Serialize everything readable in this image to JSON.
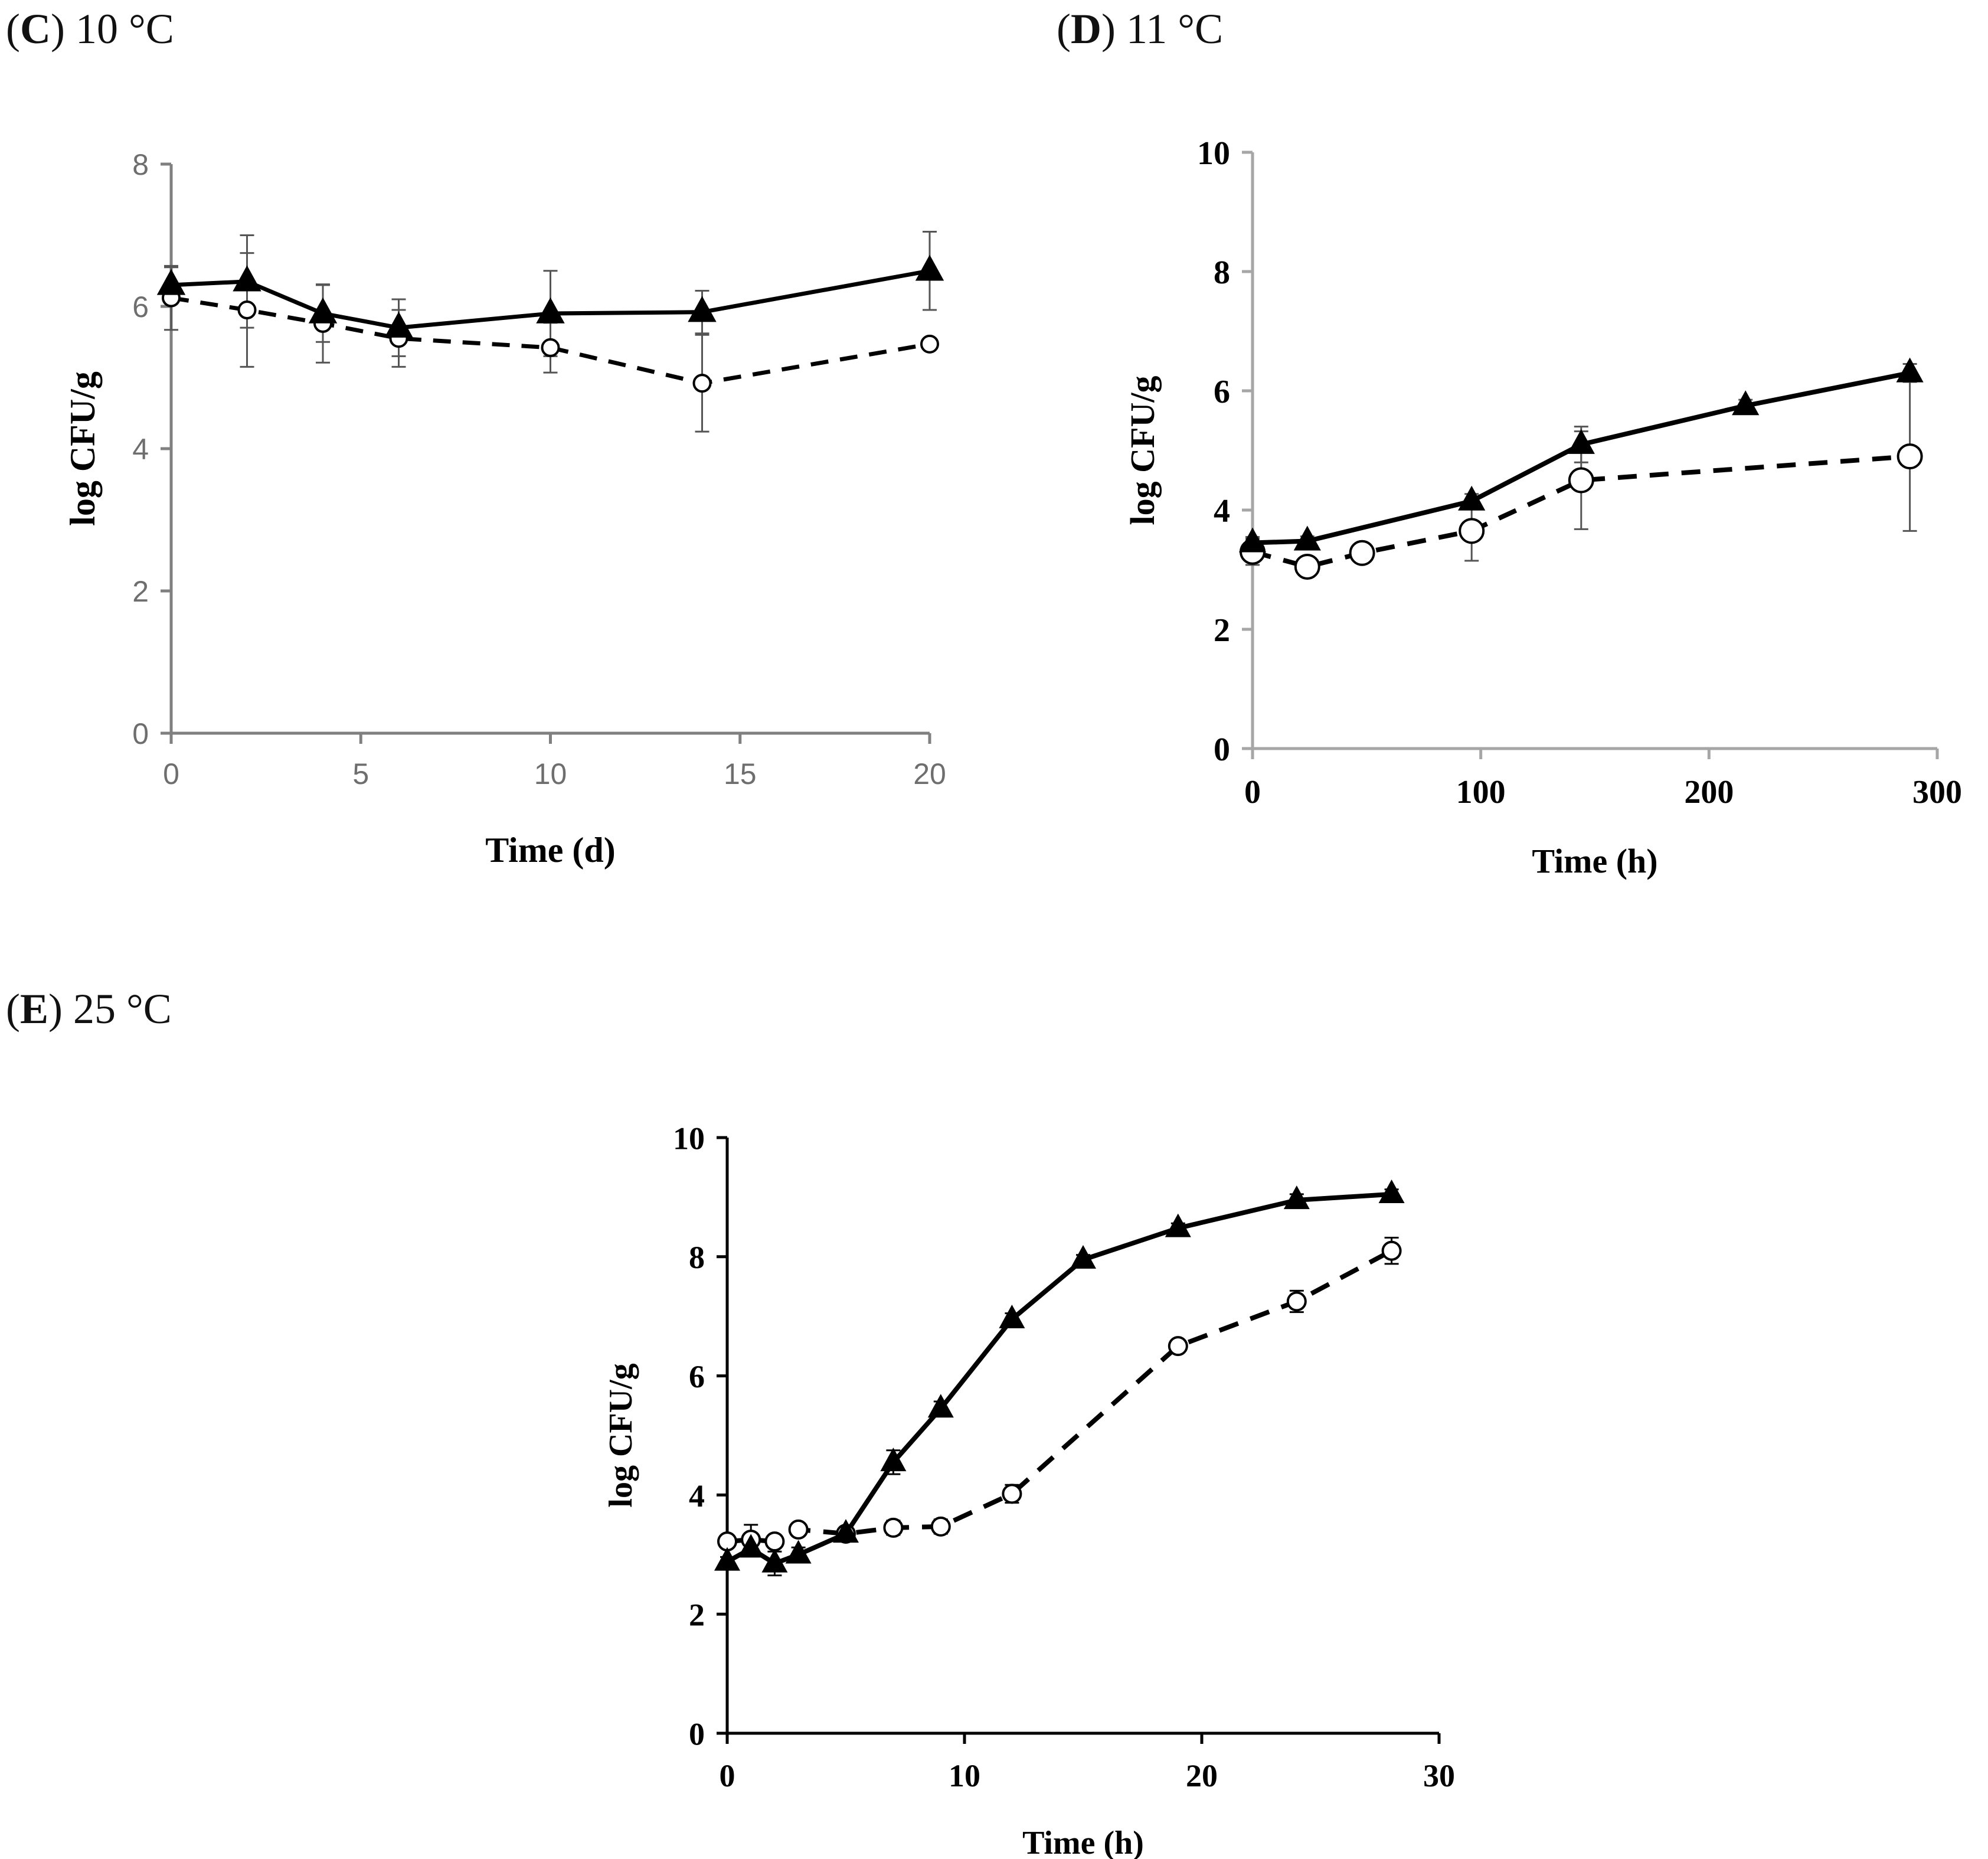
{
  "panels": {
    "C": {
      "letter": "C",
      "open": "(",
      "close": ")",
      "temp": "10 °C"
    },
    "D": {
      "letter": "D",
      "open": "(",
      "close": ")",
      "temp": "11 °C"
    },
    "E": {
      "letter": "E",
      "open": "(",
      "close": ")",
      "temp": "25 °C"
    }
  },
  "colors": {
    "ink": "#000000",
    "axisC": "#808080",
    "tickTextC": "#6e6e6e",
    "errorC": "#555555",
    "axisD": "#a6a6a6",
    "axisE": "#000000"
  },
  "chart_data": [
    {
      "id": "C",
      "type": "line",
      "title": "(C) 10 °C",
      "xlabel": "Time (d)",
      "ylabel": "log CFU/g",
      "xlim": [
        0,
        20
      ],
      "ylim": [
        0,
        8
      ],
      "xticks": [
        0,
        5,
        10,
        15,
        20
      ],
      "yticks": [
        0,
        2,
        4,
        6,
        8
      ],
      "grid": false,
      "series": [
        {
          "name": "triangle-solid",
          "marker": "triangle",
          "line": "solid",
          "x": [
            0,
            2,
            4,
            6,
            10,
            14,
            20
          ],
          "y": [
            6.3,
            6.35,
            5.9,
            5.7,
            5.9,
            5.92,
            6.5
          ],
          "err": [
            0.25,
            0.65,
            0.4,
            0.4,
            0.6,
            0.3,
            0.55
          ]
        },
        {
          "name": "circle-dashed",
          "marker": "circle",
          "line": "dashed",
          "x": [
            0,
            2,
            4,
            6,
            10,
            14,
            20
          ],
          "y": [
            6.12,
            5.95,
            5.76,
            5.55,
            5.42,
            4.92,
            5.47
          ],
          "err": [
            0.45,
            0.8,
            0.55,
            0.4,
            0.35,
            0.68,
            0.05
          ]
        }
      ]
    },
    {
      "id": "D",
      "type": "line",
      "title": "(D) 11 °C",
      "xlabel": "Time (h)",
      "ylabel": "log CFU/g",
      "xlim": [
        0,
        300
      ],
      "ylim": [
        0,
        10
      ],
      "xticks": [
        0,
        100,
        200,
        300
      ],
      "yticks": [
        0,
        2,
        4,
        6,
        8,
        10
      ],
      "grid": false,
      "series": [
        {
          "name": "triangle-solid",
          "marker": "triangle",
          "line": "solid",
          "x": [
            0,
            24,
            96,
            144,
            216,
            288
          ],
          "y": [
            3.45,
            3.48,
            4.15,
            5.1,
            5.75,
            6.3
          ],
          "err": [
            0.1,
            0.08,
            0.12,
            0.3,
            0.1,
            0.15
          ]
        },
        {
          "name": "circle-dashed",
          "marker": "circle",
          "line": "dashed",
          "x": [
            0,
            24,
            48,
            96,
            144,
            288
          ],
          "y": [
            3.3,
            3.05,
            3.28,
            3.65,
            4.5,
            4.9
          ],
          "err": [
            0.22,
            0.1,
            0.12,
            0.5,
            0.82,
            1.25
          ]
        }
      ]
    },
    {
      "id": "E",
      "type": "line",
      "title": "(E) 25 °C",
      "xlabel": "Time (h)",
      "ylabel": "log CFU/g",
      "xlim": [
        0,
        30
      ],
      "ylim": [
        0,
        10
      ],
      "xticks": [
        0,
        10,
        20,
        30
      ],
      "yticks": [
        0,
        2,
        4,
        6,
        8,
        10
      ],
      "grid": false,
      "series": [
        {
          "name": "triangle-solid",
          "marker": "triangle",
          "line": "solid",
          "x": [
            0,
            1,
            2,
            3,
            5,
            7,
            9,
            12,
            15,
            19,
            24,
            28
          ],
          "y": [
            2.88,
            3.1,
            2.85,
            3.0,
            3.35,
            4.55,
            5.45,
            6.95,
            7.95,
            8.48,
            8.95,
            9.05
          ],
          "err": [
            0.08,
            0.12,
            0.2,
            0.12,
            0.08,
            0.2,
            0.12,
            0.1,
            0.08,
            0.08,
            0.1,
            0.08
          ]
        },
        {
          "name": "circle-dashed",
          "marker": "circle",
          "line": "dashed",
          "x": [
            0,
            1,
            2,
            3,
            5,
            7,
            9,
            12,
            19,
            24,
            28
          ],
          "y": [
            3.22,
            3.25,
            3.22,
            3.42,
            3.35,
            3.45,
            3.47,
            4.02,
            6.5,
            7.25,
            8.1
          ],
          "err": [
            0.08,
            0.25,
            0.08,
            0.1,
            0.1,
            0.12,
            0.12,
            0.15,
            0.08,
            0.18,
            0.22
          ]
        }
      ]
    }
  ]
}
